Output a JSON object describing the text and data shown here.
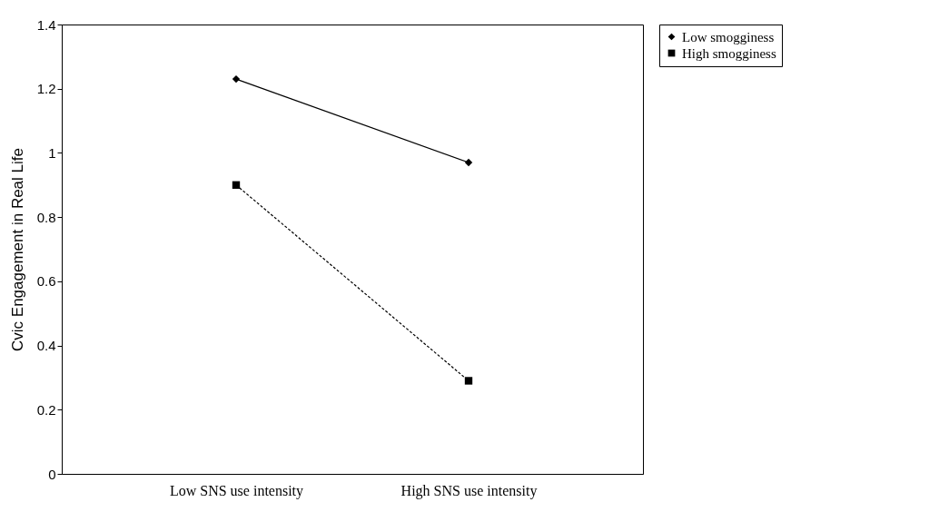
{
  "chart_data": {
    "type": "line",
    "ylabel": "Cvic Engagement in Real Life",
    "categories": [
      "Low SNS use intensity",
      "High SNS use intensity"
    ],
    "series": [
      {
        "name": "Low smogginess",
        "color": "#000000",
        "values": [
          1.23,
          0.97
        ],
        "marker": "diamond",
        "line_style": "solid"
      },
      {
        "name": "High smogginess",
        "color": "#000000",
        "values": [
          0.9,
          0.29
        ],
        "marker": "square",
        "line_style": "dashed"
      }
    ],
    "ylim": [
      0,
      1.4
    ],
    "yticks": [
      0,
      0.2,
      0.4,
      0.6,
      0.8,
      1,
      1.2,
      1.4
    ],
    "grid": false,
    "legend": "right"
  }
}
